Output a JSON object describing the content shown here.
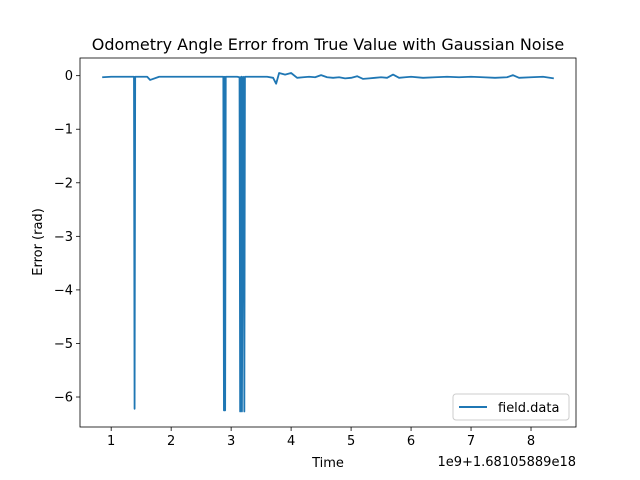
{
  "chart_data": {
    "type": "line",
    "title": "Odometry Angle Error from True Value with Gaussian Noise",
    "xlabel": "Time",
    "ylabel": "Error (rad)",
    "x_offset_text": "1e9+1.68105889e18",
    "xlim": [
      0.48,
      8.75
    ],
    "ylim": [
      -6.56,
      0.33
    ],
    "xticks": [
      1,
      2,
      3,
      4,
      5,
      6,
      7,
      8
    ],
    "xtick_labels": [
      "1",
      "2",
      "3",
      "4",
      "5",
      "6",
      "7",
      "8"
    ],
    "yticks": [
      0,
      -1,
      -2,
      -3,
      -4,
      -5,
      -6
    ],
    "ytick_labels": [
      "0",
      "−1",
      "−2",
      "−3",
      "−4",
      "−5",
      "−6"
    ],
    "grid": false,
    "legend_position": "lower-right",
    "series": [
      {
        "name": "field.data",
        "color": "#1f77b4",
        "x": [
          0.85,
          1.0,
          1.2,
          1.38,
          1.39,
          1.4,
          1.41,
          1.42,
          1.6,
          1.65,
          1.8,
          2.0,
          2.2,
          2.4,
          2.6,
          2.87,
          2.88,
          2.89,
          2.9,
          2.91,
          3.1,
          3.14,
          3.15,
          3.16,
          3.17,
          3.18,
          3.2,
          3.21,
          3.22,
          3.23,
          3.24,
          3.4,
          3.6,
          3.7,
          3.75,
          3.8,
          3.9,
          4.0,
          4.1,
          4.2,
          4.3,
          4.4,
          4.5,
          4.6,
          4.7,
          4.8,
          4.9,
          5.0,
          5.1,
          5.2,
          5.3,
          5.4,
          5.5,
          5.6,
          5.7,
          5.8,
          5.9,
          6.0,
          6.2,
          6.4,
          6.6,
          6.8,
          7.0,
          7.2,
          7.4,
          7.6,
          7.7,
          7.8,
          8.0,
          8.2,
          8.38
        ],
        "values": [
          -0.03,
          -0.02,
          -0.02,
          -0.02,
          -6.22,
          -0.02,
          -0.02,
          -0.02,
          -0.02,
          -0.08,
          -0.02,
          -0.02,
          -0.02,
          -0.02,
          -0.02,
          -0.02,
          -6.25,
          -0.02,
          -6.25,
          -0.02,
          -0.02,
          -0.03,
          -6.27,
          -0.03,
          -0.02,
          -6.27,
          -0.02,
          -0.03,
          -6.27,
          -0.02,
          -0.02,
          -0.02,
          -0.02,
          -0.04,
          -0.15,
          0.05,
          0.02,
          0.05,
          -0.04,
          -0.03,
          -0.02,
          -0.03,
          0.01,
          -0.03,
          -0.04,
          -0.03,
          -0.05,
          -0.04,
          -0.01,
          -0.06,
          -0.05,
          -0.04,
          -0.03,
          -0.04,
          0.02,
          -0.04,
          -0.03,
          -0.02,
          -0.04,
          -0.03,
          -0.02,
          -0.03,
          -0.02,
          -0.03,
          -0.04,
          -0.03,
          0.01,
          -0.04,
          -0.03,
          -0.02,
          -0.05
        ]
      }
    ]
  }
}
